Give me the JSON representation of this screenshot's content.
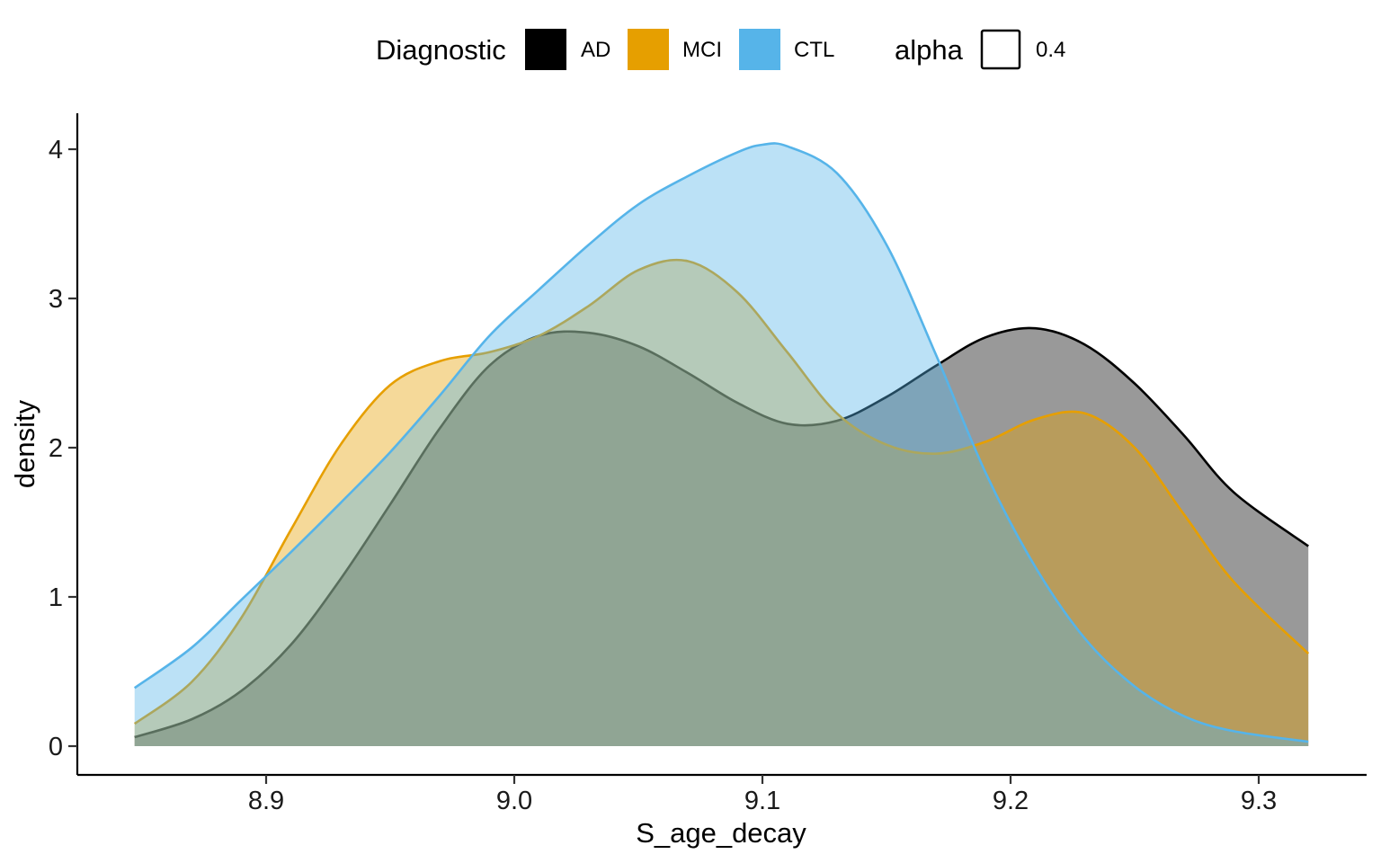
{
  "legend": {
    "fill_title": "Diagnostic",
    "alpha_title": "alpha",
    "alpha_value_label": "0.4"
  },
  "chart_data": {
    "type": "area",
    "subtype": "density",
    "title": "",
    "xlabel": "S_age_decay",
    "ylabel": "density",
    "xlim": [
      8.82,
      9.34
    ],
    "ylim": [
      -0.2,
      4.23
    ],
    "x_ticks": [
      8.9,
      9.0,
      9.1,
      9.2,
      9.3
    ],
    "x_tick_labels": [
      "8.9",
      "9.0",
      "9.1",
      "9.2",
      "9.3"
    ],
    "y_ticks": [
      0,
      1,
      2,
      3,
      4
    ],
    "y_tick_labels": [
      "0",
      "1",
      "2",
      "3",
      "4"
    ],
    "grid": false,
    "legend_position": "top",
    "fill_alpha": 0.4,
    "series": [
      {
        "name": "AD",
        "color": "#000000",
        "x": [
          8.847,
          8.87,
          8.89,
          8.91,
          8.93,
          8.95,
          8.97,
          8.99,
          9.01,
          9.03,
          9.05,
          9.07,
          9.09,
          9.11,
          9.13,
          9.15,
          9.17,
          9.19,
          9.21,
          9.23,
          9.25,
          9.27,
          9.29,
          9.32
        ],
        "y": [
          0.06,
          0.18,
          0.37,
          0.68,
          1.12,
          1.62,
          2.13,
          2.55,
          2.75,
          2.77,
          2.68,
          2.5,
          2.3,
          2.16,
          2.18,
          2.34,
          2.55,
          2.74,
          2.8,
          2.69,
          2.43,
          2.08,
          1.7,
          1.34
        ]
      },
      {
        "name": "MCI",
        "color": "#E69F00",
        "x": [
          8.847,
          8.87,
          8.89,
          8.91,
          8.93,
          8.95,
          8.97,
          8.99,
          9.01,
          9.03,
          9.05,
          9.07,
          9.09,
          9.11,
          9.13,
          9.15,
          9.17,
          9.19,
          9.21,
          9.23,
          9.25,
          9.27,
          9.29,
          9.32
        ],
        "y": [
          0.15,
          0.43,
          0.86,
          1.45,
          2.02,
          2.42,
          2.58,
          2.64,
          2.75,
          2.95,
          3.19,
          3.25,
          3.04,
          2.64,
          2.23,
          2.02,
          1.96,
          2.04,
          2.19,
          2.23,
          2.0,
          1.55,
          1.1,
          0.62
        ]
      },
      {
        "name": "CTL",
        "color": "#56B4E9",
        "x": [
          8.847,
          8.87,
          8.89,
          8.91,
          8.93,
          8.95,
          8.97,
          8.99,
          9.01,
          9.03,
          9.05,
          9.07,
          9.09,
          9.1,
          9.11,
          9.13,
          9.15,
          9.17,
          9.19,
          9.21,
          9.23,
          9.25,
          9.27,
          9.29,
          9.32
        ],
        "y": [
          0.39,
          0.66,
          0.98,
          1.3,
          1.63,
          1.97,
          2.35,
          2.75,
          3.06,
          3.36,
          3.63,
          3.82,
          3.98,
          4.03,
          4.02,
          3.84,
          3.36,
          2.62,
          1.83,
          1.2,
          0.72,
          0.4,
          0.2,
          0.1,
          0.03
        ]
      }
    ]
  }
}
